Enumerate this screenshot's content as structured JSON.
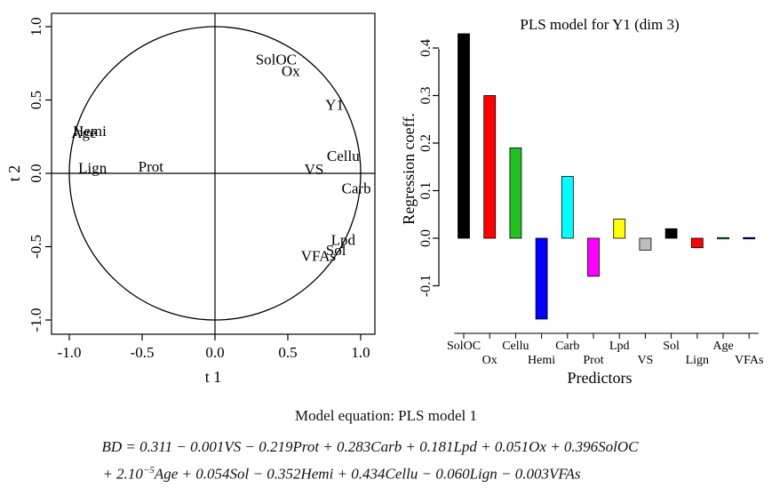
{
  "chart_data": [
    {
      "type": "scatter",
      "subtype": "correlation-circle",
      "title": "",
      "xlabel": "t 1",
      "ylabel": "t 2",
      "xlim": [
        -1.05,
        1.05
      ],
      "ylim": [
        -1.05,
        1.05
      ],
      "xticks": [
        "-1.0",
        "-0.5",
        "0.0",
        "0.5",
        "1.0"
      ],
      "yticks": [
        "-1.0",
        "-0.5",
        "0.0",
        "0.5",
        "1.0"
      ],
      "grid": false,
      "points": [
        {
          "label": "SolOC",
          "x": 0.42,
          "y": 0.78
        },
        {
          "label": "Ox",
          "x": 0.52,
          "y": 0.7
        },
        {
          "label": "Y1",
          "x": 0.82,
          "y": 0.47
        },
        {
          "label": "Cellu",
          "x": 0.88,
          "y": 0.12
        },
        {
          "label": "VS",
          "x": 0.68,
          "y": 0.03
        },
        {
          "label": "Carb",
          "x": 0.97,
          "y": -0.1
        },
        {
          "label": "Lpd",
          "x": 0.88,
          "y": -0.45
        },
        {
          "label": "Sol",
          "x": 0.83,
          "y": -0.52
        },
        {
          "label": "VFAs",
          "x": 0.71,
          "y": -0.56
        },
        {
          "label": "Hemi",
          "x": -0.86,
          "y": 0.29
        },
        {
          "label": "Age",
          "x": -0.9,
          "y": 0.28
        },
        {
          "label": "Lign",
          "x": -0.84,
          "y": 0.04
        },
        {
          "label": "Prot",
          "x": -0.44,
          "y": 0.05
        }
      ]
    },
    {
      "type": "bar",
      "title": "PLS model for Y1 (dim 3)",
      "xlabel": "Predictors",
      "ylabel": "Regression coeff.",
      "ylim": [
        -0.17,
        0.43
      ],
      "yticks": [
        "-0.1",
        "0.0",
        "0.1",
        "0.2",
        "0.3",
        "0.4"
      ],
      "categories": [
        "SolOC",
        "Ox",
        "Cellu",
        "Hemi",
        "Carb",
        "Prot",
        "Lpd",
        "VS",
        "Sol",
        "Lign",
        "Age",
        "VFAs"
      ],
      "values": [
        0.43,
        0.3,
        0.19,
        -0.17,
        0.13,
        -0.08,
        0.04,
        -0.025,
        0.02,
        -0.02,
        0.002,
        0.001
      ],
      "colors": [
        "#000000",
        "#ff0000",
        "#22c022",
        "#0000ff",
        "#00ffff",
        "#ff00ff",
        "#ffff00",
        "#bebebe",
        "#000000",
        "#ff0000",
        "#22c022",
        "#0000ff"
      ]
    }
  ],
  "equation": {
    "caption": "Model equation: PLS model 1",
    "line1": "BD = 0.311 − 0.001VS − 0.219Prot + 0.283Carb + 0.181Lpd + 0.051Ox + 0.396SolOC",
    "line2_pre": "+ 2.10",
    "line2_exp": "−5",
    "line2_post": "Age + 0.054Sol − 0.352Hemi + 0.434Cellu − 0.060Lign − 0.003VFAs"
  }
}
